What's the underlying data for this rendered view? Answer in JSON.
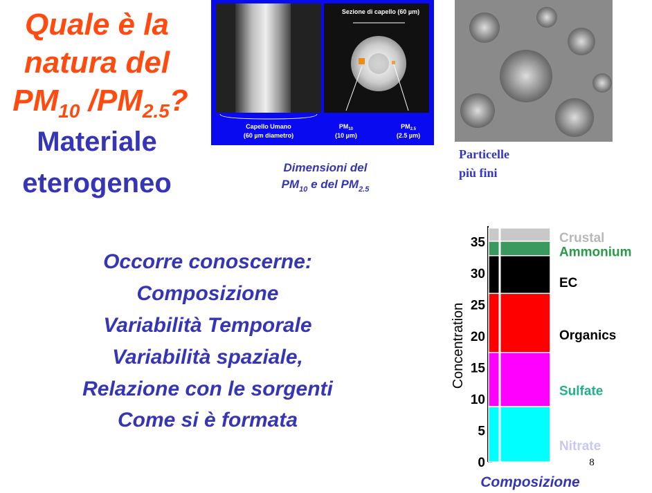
{
  "title": {
    "parts": [
      "Quale è la",
      "natura del",
      "PM",
      "10",
      " /PM",
      "2.5",
      "?"
    ]
  },
  "subtitle": [
    "Materiale",
    "eterogeneo"
  ],
  "figure1": {
    "scale_label": "Sezione di capello (60 µm)",
    "hair_label": [
      "Capello Umano",
      "(60 µm diametro)"
    ],
    "pm10_label": [
      "PM",
      "10",
      "(10 µm)"
    ],
    "pm25_label": [
      "PM",
      "2.5",
      "(2.5 µm)"
    ],
    "caption": [
      "Dimensioni del",
      "PM",
      "10",
      " e del PM",
      "2.5"
    ]
  },
  "figure2": {
    "caption": [
      "Particelle",
      "più fini"
    ]
  },
  "body": [
    "Occorre conoscerne:",
    "Composizione",
    "Variabilità Temporale",
    "Variabilità spaziale,",
    "Relazione con le sorgenti",
    "Come si è formata"
  ],
  "page_number": "8",
  "chart_data": {
    "type": "stacked_bar",
    "y_label": "Concentration",
    "x_label": "Composizione",
    "categories": [
      null
    ],
    "ylim": [
      0,
      37.5
    ],
    "yticks": [
      0,
      5,
      10,
      15,
      20,
      25,
      30,
      35
    ],
    "series": [
      {
        "name": "Nitrate",
        "color": "#00ffff",
        "label_color": "#c8c8f0",
        "values": [
          8.8
        ]
      },
      {
        "name": "Sulfate",
        "color": "#ff00ff",
        "label_color": "#22b08a",
        "values": [
          8.6
        ]
      },
      {
        "name": "Organics",
        "color": "#ff0000",
        "label_color": "#000000",
        "values": [
          9.4
        ]
      },
      {
        "name": "EC",
        "color": "#000000",
        "label_color": "#000000",
        "values": [
          6.0
        ]
      },
      {
        "name": "Ammonium",
        "color": "#3a9a5e",
        "label_color": "#2a9a4a",
        "values": [
          2.3
        ]
      },
      {
        "name": "Crustal",
        "color": "#c8c8c8",
        "label_color": "#b8b8b8",
        "values": [
          2.1
        ]
      }
    ]
  }
}
